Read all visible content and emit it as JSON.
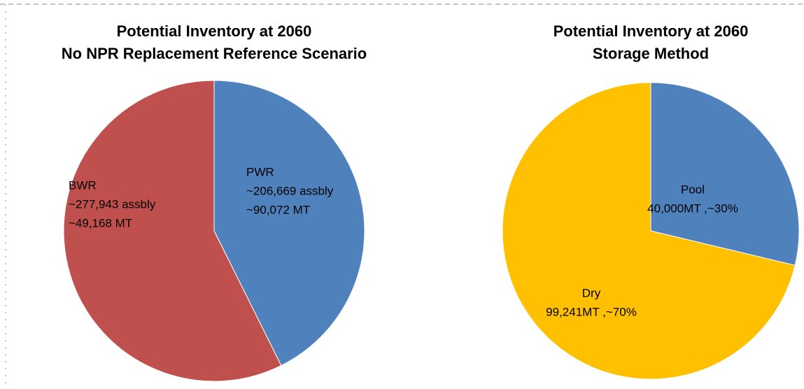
{
  "chart_data": [
    {
      "type": "pie",
      "title": "Potential Inventory at 2060",
      "subtitle": "No NPR Replacement Reference Scenario",
      "categories": [
        "PWR",
        "BWR"
      ],
      "values": [
        206669,
        277943
      ],
      "value_labels": [
        "~206,669 assbly",
        "~277,943 assbly"
      ],
      "mass_labels": [
        "~90,072 MT",
        "~49,168 MT"
      ],
      "colors": [
        "#4f81bd",
        "#c0504d"
      ]
    },
    {
      "type": "pie",
      "title": "Potential Inventory at 2060",
      "subtitle": "Storage Method",
      "categories": [
        "Pool",
        "Dry"
      ],
      "values": [
        40000,
        99241
      ],
      "value_labels": [
        "40,000MT ,~30%",
        "99,241MT ,~70%"
      ],
      "colors": [
        "#4f81bd",
        "#ffc000"
      ]
    }
  ]
}
